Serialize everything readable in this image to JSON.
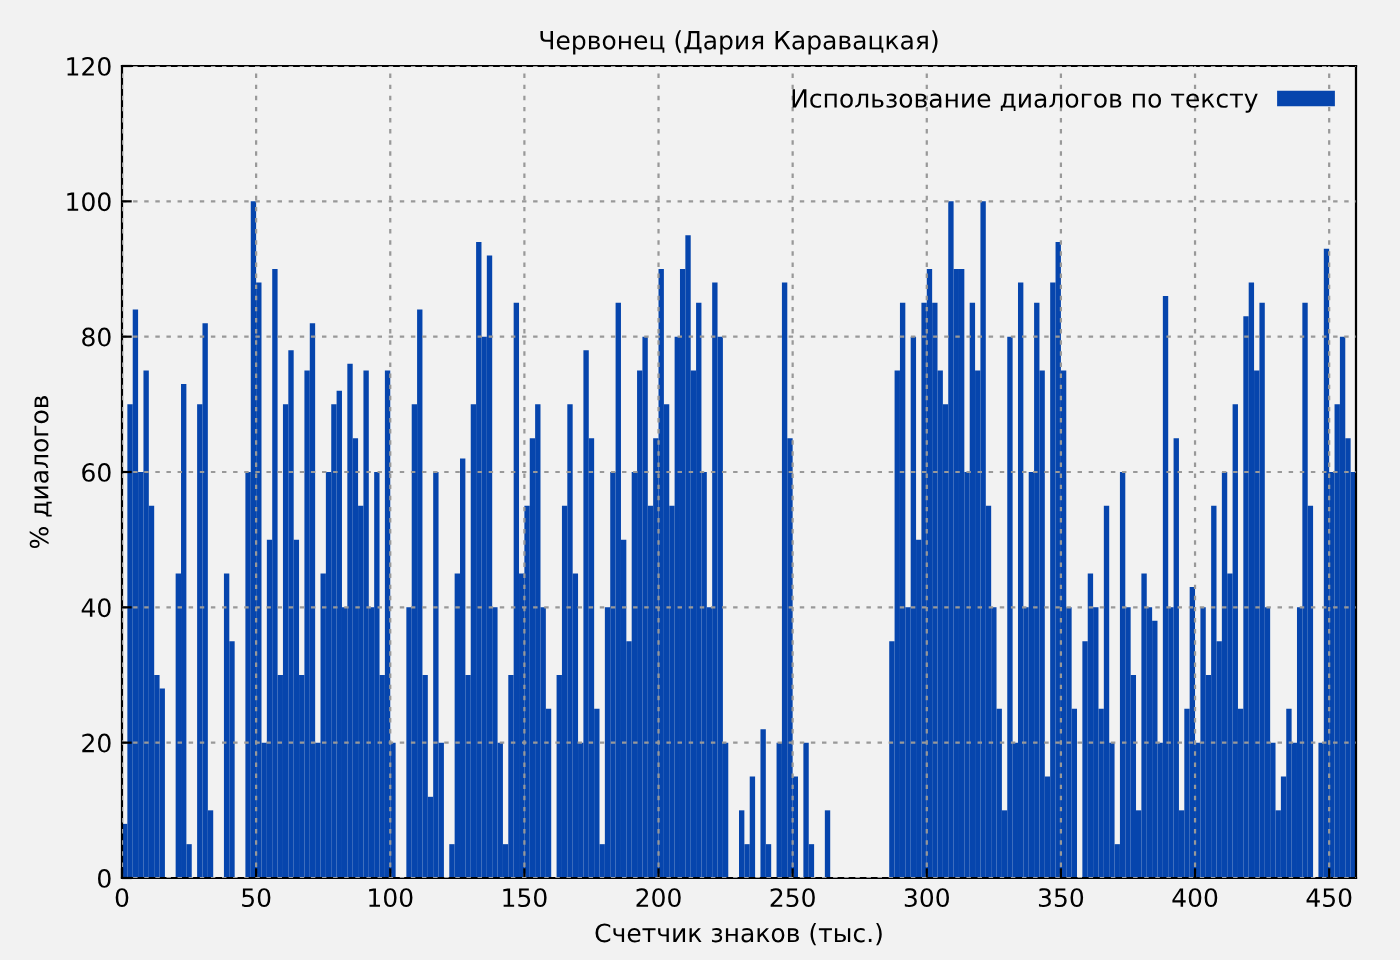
{
  "chart_data": {
    "type": "bar",
    "title": "Червонец (Дария Каравацкая)",
    "xlabel": "Счетчик знаков (тыс.)",
    "ylabel": "% диалогов",
    "x": [
      0,
      2,
      4,
      6,
      8,
      10,
      12,
      14,
      16,
      18,
      20,
      22,
      24,
      26,
      28,
      30,
      32,
      34,
      36,
      38,
      40,
      42,
      44,
      46,
      48,
      50,
      52,
      54,
      56,
      58,
      60,
      62,
      64,
      66,
      68,
      70,
      72,
      74,
      76,
      78,
      80,
      82,
      84,
      86,
      88,
      90,
      92,
      94,
      96,
      98,
      100,
      102,
      104,
      106,
      108,
      110,
      112,
      114,
      116,
      118,
      120,
      122,
      124,
      126,
      128,
      130,
      132,
      134,
      136,
      138,
      140,
      142,
      144,
      146,
      148,
      150,
      152,
      154,
      156,
      158,
      160,
      162,
      164,
      166,
      168,
      170,
      172,
      174,
      176,
      178,
      180,
      182,
      184,
      186,
      188,
      190,
      192,
      194,
      196,
      198,
      200,
      202,
      204,
      206,
      208,
      210,
      212,
      214,
      216,
      218,
      220,
      222,
      224,
      226,
      228,
      230,
      232,
      234,
      236,
      238,
      240,
      242,
      244,
      246,
      248,
      250,
      252,
      254,
      256,
      258,
      260,
      262,
      264,
      266,
      268,
      270,
      272,
      274,
      276,
      278,
      280,
      282,
      284,
      286,
      288,
      290,
      292,
      294,
      296,
      298,
      300,
      302,
      304,
      306,
      308,
      310,
      312,
      314,
      316,
      318,
      320,
      322,
      324,
      326,
      328,
      330,
      332,
      334,
      336,
      338,
      340,
      342,
      344,
      346,
      348,
      350,
      352,
      354,
      356,
      358,
      360,
      362,
      364,
      366,
      368,
      370,
      372,
      374,
      376,
      378,
      380,
      382,
      384,
      386,
      388,
      390,
      392,
      394,
      396,
      398,
      400,
      402,
      404,
      406,
      408,
      410,
      412,
      414,
      416,
      418,
      420,
      422,
      424,
      426,
      428,
      430,
      432,
      434,
      436,
      438,
      440,
      442,
      444,
      446,
      448,
      450,
      452,
      454,
      456,
      458
    ],
    "series": [
      {
        "name": "Использование диалогов по тексту",
        "color": "#0645ad",
        "values": [
          8,
          70,
          84,
          60,
          75,
          55,
          30,
          28,
          0,
          0,
          45,
          73,
          5,
          0,
          70,
          82,
          10,
          0,
          0,
          45,
          35,
          0,
          0,
          60,
          100,
          88,
          20,
          50,
          90,
          30,
          70,
          78,
          50,
          30,
          75,
          82,
          20,
          45,
          60,
          70,
          72,
          40,
          76,
          65,
          55,
          75,
          40,
          60,
          30,
          75,
          20,
          0,
          0,
          40,
          70,
          84,
          30,
          12,
          60,
          20,
          0,
          5,
          45,
          62,
          30,
          70,
          94,
          80,
          92,
          40,
          20,
          5,
          30,
          85,
          45,
          55,
          65,
          70,
          40,
          25,
          0,
          30,
          55,
          70,
          45,
          20,
          78,
          65,
          25,
          5,
          40,
          60,
          85,
          50,
          35,
          60,
          75,
          80,
          55,
          65,
          90,
          70,
          55,
          80,
          90,
          95,
          75,
          85,
          60,
          40,
          88,
          80,
          20,
          0,
          0,
          10,
          5,
          15,
          0,
          22,
          5,
          0,
          20,
          88,
          65,
          15,
          0,
          20,
          5,
          0,
          0,
          10,
          0,
          0,
          0,
          0,
          0,
          0,
          0,
          0,
          0,
          0,
          0,
          35,
          75,
          85,
          40,
          80,
          50,
          85,
          90,
          85,
          75,
          70,
          100,
          90,
          90,
          60,
          85,
          75,
          100,
          55,
          40,
          25,
          10,
          80,
          20,
          88,
          40,
          60,
          85,
          75,
          15,
          88,
          94,
          75,
          40,
          25,
          0,
          35,
          45,
          40,
          25,
          55,
          20,
          5,
          60,
          40,
          30,
          10,
          45,
          40,
          38,
          20,
          86,
          40,
          65,
          10,
          25,
          43,
          20,
          40,
          30,
          55,
          35,
          60,
          45,
          70,
          25,
          83,
          88,
          75,
          85,
          40,
          20,
          10,
          15,
          25,
          20,
          40,
          85,
          55,
          0,
          20,
          93,
          60,
          70,
          80,
          65,
          60
        ]
      }
    ],
    "xlim": [
      0,
      460
    ],
    "xticks": [
      0,
      50,
      100,
      150,
      200,
      250,
      300,
      350,
      400,
      450
    ],
    "ylim": [
      0,
      120
    ],
    "yticks": [
      0,
      20,
      40,
      60,
      80,
      100,
      120
    ],
    "grid": true,
    "legend": "top right"
  }
}
